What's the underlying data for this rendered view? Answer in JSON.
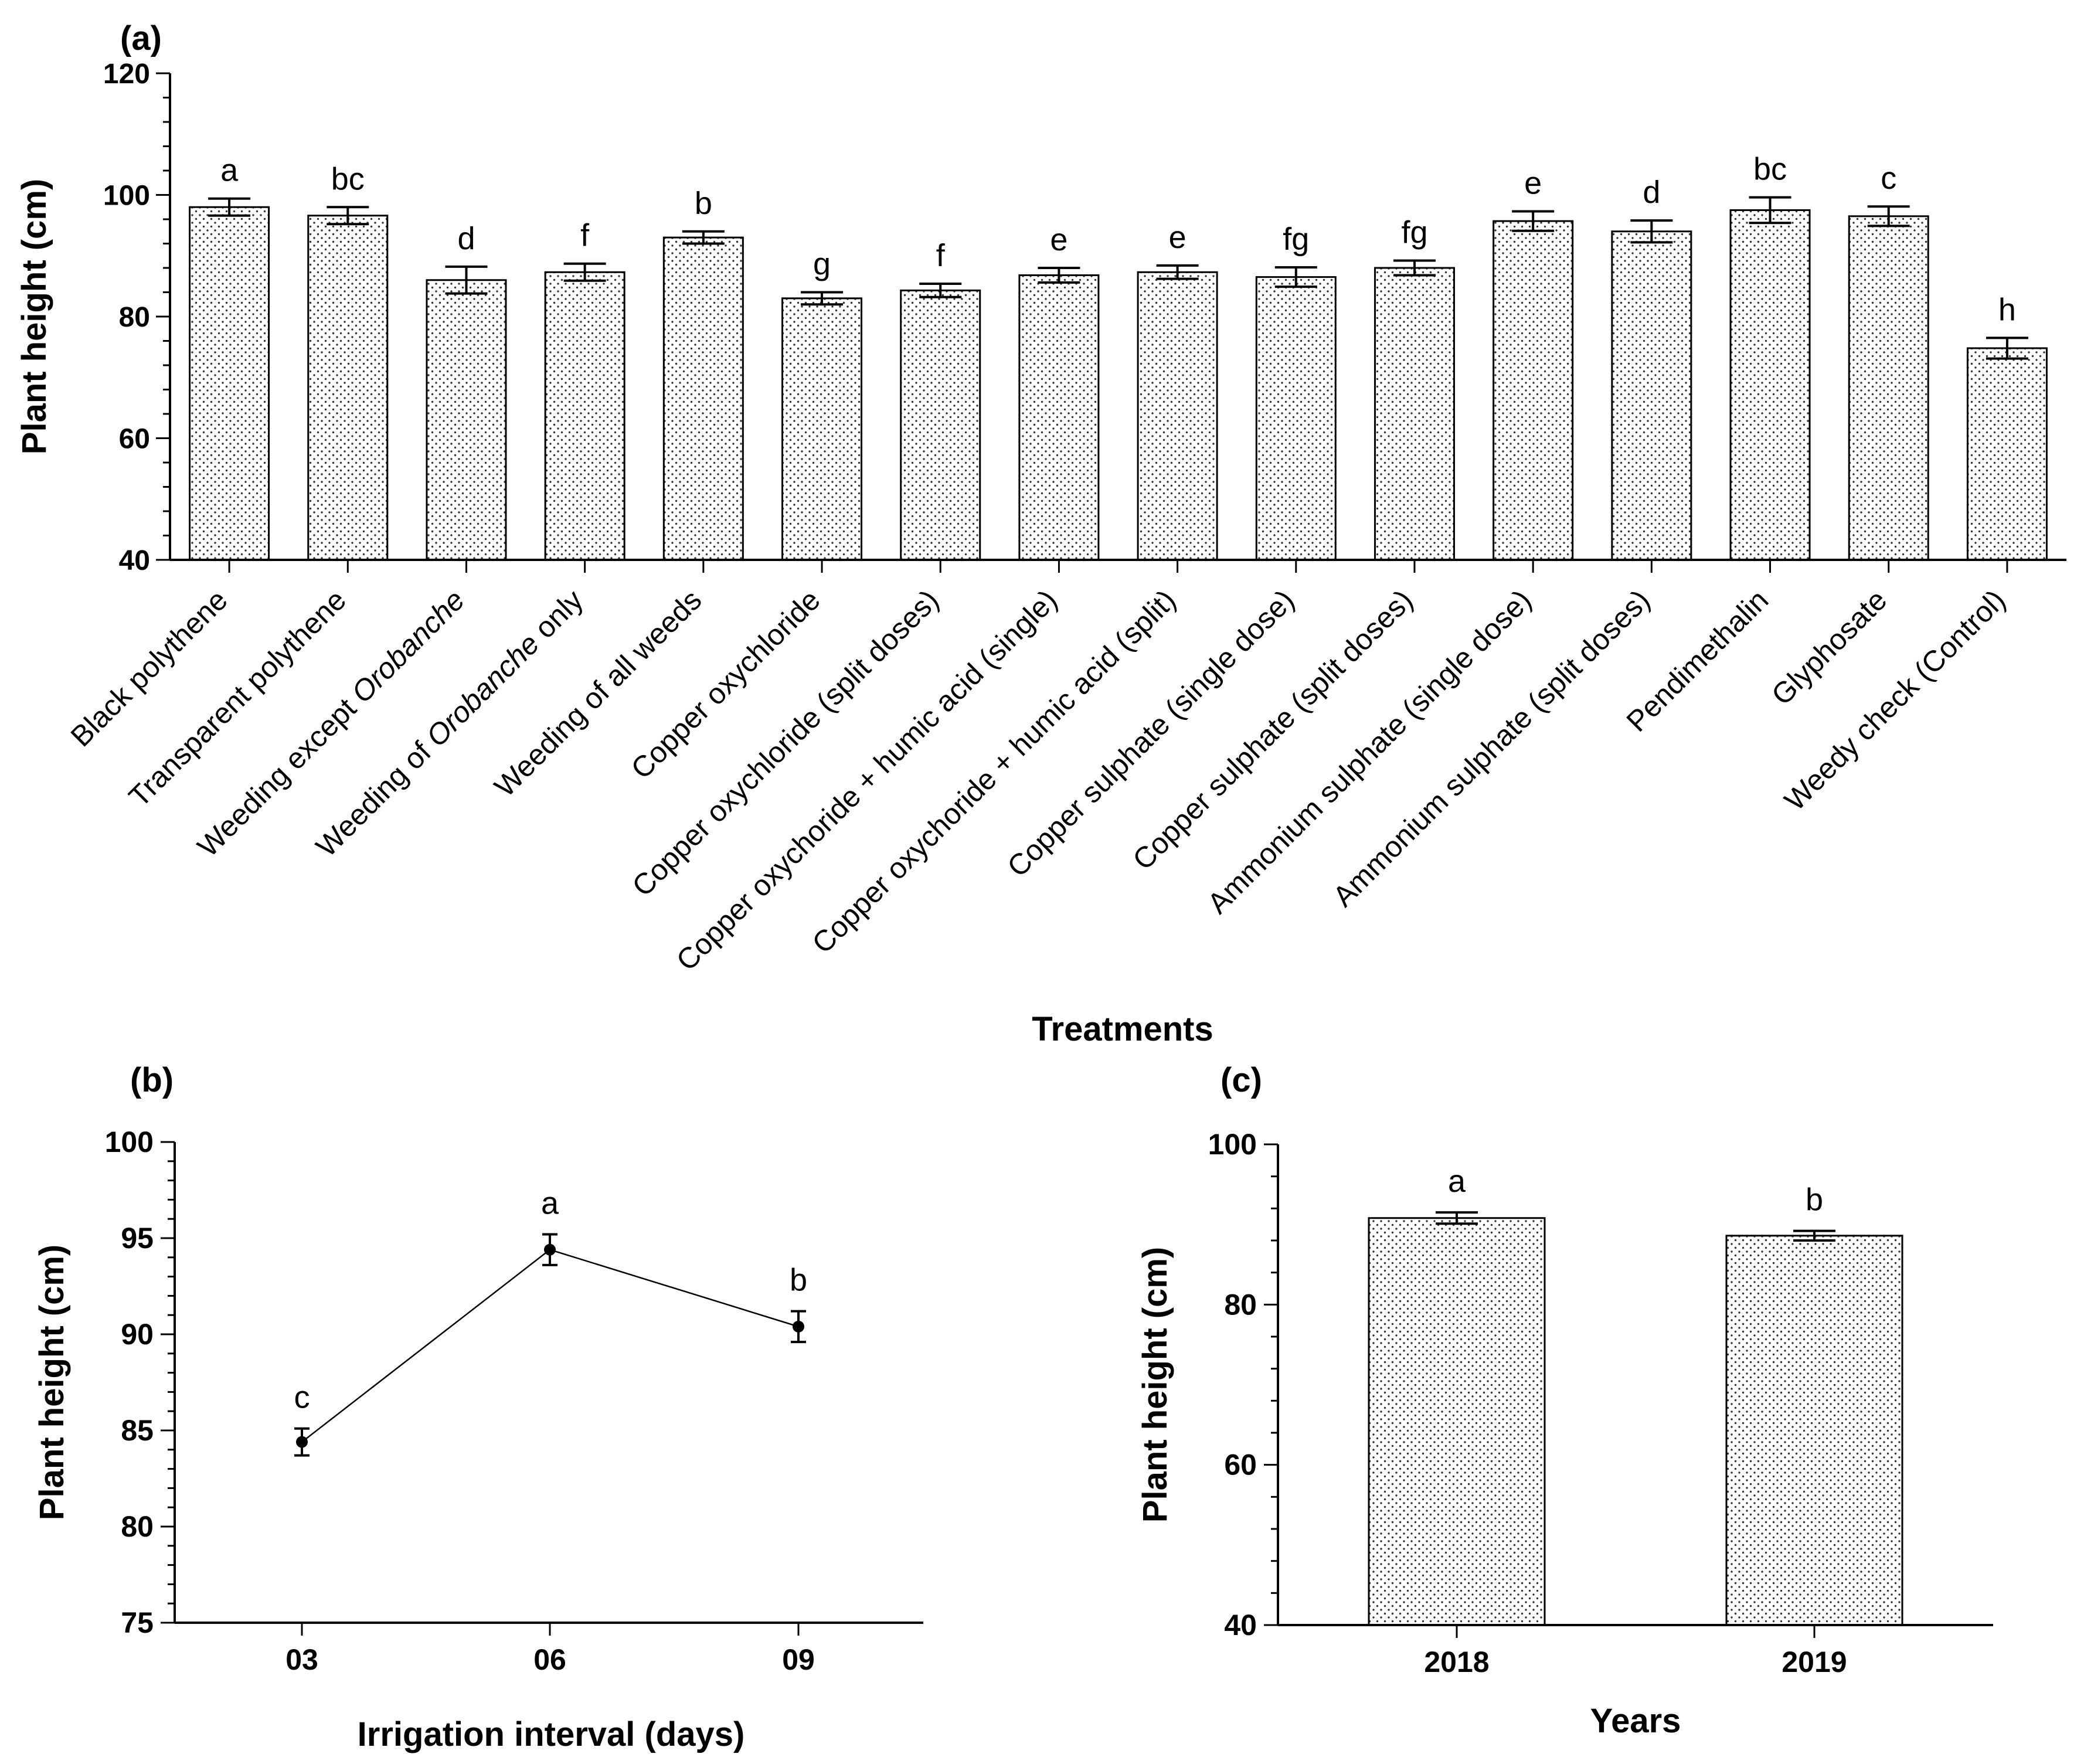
{
  "chart_data": [
    {
      "panel": "(a)",
      "type": "bar",
      "ylabel": "Plant height (cm)",
      "xlabel": "Treatments",
      "ylim": [
        40,
        120
      ],
      "yticks": [
        40,
        60,
        80,
        100,
        120
      ],
      "categories": [
        {
          "parts": [
            {
              "t": "Black polythene",
              "i": false
            }
          ]
        },
        {
          "parts": [
            {
              "t": "Transparent polythene",
              "i": false
            }
          ]
        },
        {
          "parts": [
            {
              "t": "Weeding except ",
              "i": false
            },
            {
              "t": "Orobanche",
              "i": true
            }
          ]
        },
        {
          "parts": [
            {
              "t": "Weeding of ",
              "i": false
            },
            {
              "t": "Orobanche",
              "i": true
            },
            {
              "t": " only",
              "i": false
            }
          ]
        },
        {
          "parts": [
            {
              "t": "Weeding of all weeds",
              "i": false
            }
          ]
        },
        {
          "parts": [
            {
              "t": "Copper oxychloride",
              "i": false
            }
          ]
        },
        {
          "parts": [
            {
              "t": "Copper oxychloride (split doses)",
              "i": false
            }
          ]
        },
        {
          "parts": [
            {
              "t": "Copper oxychoride + humic acid (single)",
              "i": false
            }
          ]
        },
        {
          "parts": [
            {
              "t": "Copper oxychoride + humic acid (split)",
              "i": false
            }
          ]
        },
        {
          "parts": [
            {
              "t": "Copper sulphate (single dose)",
              "i": false
            }
          ]
        },
        {
          "parts": [
            {
              "t": "Copper sulphate (split doses)",
              "i": false
            }
          ]
        },
        {
          "parts": [
            {
              "t": "Ammonium sulphate (single dose)",
              "i": false
            }
          ]
        },
        {
          "parts": [
            {
              "t": "Ammonium sulphate (split doses)",
              "i": false
            }
          ]
        },
        {
          "parts": [
            {
              "t": "Pendimethalin",
              "i": false
            }
          ]
        },
        {
          "parts": [
            {
              "t": "Glyphosate",
              "i": false
            }
          ]
        },
        {
          "parts": [
            {
              "t": "Weedy check (Control)",
              "i": false
            }
          ]
        }
      ],
      "values": [
        98.0,
        96.6,
        86.0,
        87.3,
        93.0,
        83.0,
        84.3,
        86.8,
        87.3,
        86.5,
        88.0,
        95.7,
        94.0,
        97.5,
        96.5,
        74.8
      ],
      "errors": [
        1.4,
        1.4,
        2.2,
        1.4,
        1.0,
        1.0,
        1.1,
        1.2,
        1.1,
        1.6,
        1.2,
        1.6,
        1.8,
        2.1,
        1.6,
        1.7
      ],
      "letters": [
        "a",
        "bc",
        "d",
        "f",
        "b",
        "g",
        "f",
        "e",
        "e",
        "fg",
        "fg",
        "e",
        "d",
        "bc",
        "c",
        "h"
      ]
    },
    {
      "panel": "(b)",
      "type": "line",
      "ylabel": "Plant height (cm)",
      "xlabel": "Irrigation interval (days)",
      "ylim": [
        75,
        100
      ],
      "yticks": [
        75,
        80,
        85,
        90,
        95,
        100
      ],
      "x": [
        "03",
        "06",
        "09"
      ],
      "values": [
        84.4,
        94.4,
        90.4
      ],
      "errors": [
        0.7,
        0.8,
        0.8
      ],
      "letters": [
        "c",
        "a",
        "b"
      ]
    },
    {
      "panel": "(c)",
      "type": "bar",
      "ylabel": "Plant height (cm)",
      "xlabel": "Years",
      "ylim": [
        40,
        100
      ],
      "yticks": [
        40,
        60,
        80,
        100
      ],
      "categories": [
        "2018",
        "2019"
      ],
      "values": [
        90.8,
        88.6
      ],
      "errors": [
        0.7,
        0.6
      ],
      "letters": [
        "a",
        "b"
      ]
    }
  ]
}
